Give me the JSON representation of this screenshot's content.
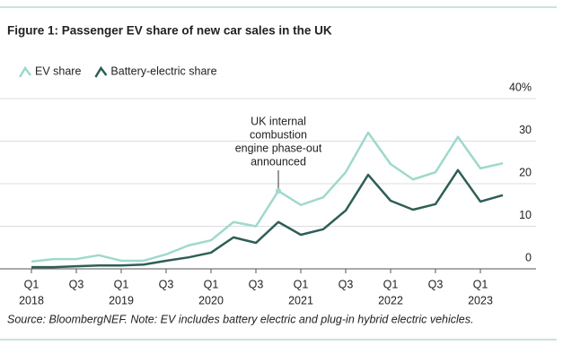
{
  "chart_data": {
    "type": "line",
    "title": "Figure 1: Passenger EV share of new car sales in the UK",
    "source": "Source: BloombergNEF. Note: EV includes battery electric and plug-in hybrid electric vehicles.",
    "annotation": {
      "lines": [
        "UK internal",
        "combustion",
        "engine phase-out",
        "announced"
      ],
      "index": 11
    },
    "categories": [
      "Q1",
      null,
      "Q3",
      null,
      "Q1",
      null,
      "Q3",
      null,
      "Q1",
      null,
      "Q3",
      null,
      "Q1",
      null,
      "Q3",
      null,
      "Q1",
      null,
      "Q3",
      null,
      "Q1",
      null
    ],
    "year_labels": [
      "2018",
      null,
      null,
      null,
      "2019",
      null,
      null,
      null,
      "2020",
      null,
      null,
      null,
      "2021",
      null,
      null,
      null,
      "2022",
      null,
      null,
      null,
      "2023",
      null
    ],
    "series": [
      {
        "name": "EV share",
        "color": "#9fd8cc",
        "values": [
          1.7,
          2.3,
          2.3,
          3.2,
          1.9,
          1.9,
          3.4,
          5.5,
          6.7,
          11,
          10,
          18.3,
          15,
          16.8,
          22.7,
          32,
          24.6,
          21,
          22.7,
          31,
          23.6,
          24.8
        ]
      },
      {
        "name": "Battery-electric share",
        "color": "#2e5e56",
        "values": [
          0.4,
          0.4,
          0.6,
          0.8,
          0.8,
          1,
          1.9,
          2.7,
          3.8,
          7.4,
          6.1,
          11,
          8,
          9.3,
          13.7,
          22.1,
          16,
          13.9,
          15.2,
          23.2,
          15.8,
          17.3
        ]
      }
    ],
    "ylim": [
      0,
      40
    ],
    "yticks": [
      0,
      10,
      20,
      30,
      {
        "value": 40,
        "label": "40%"
      }
    ],
    "grid": true
  }
}
